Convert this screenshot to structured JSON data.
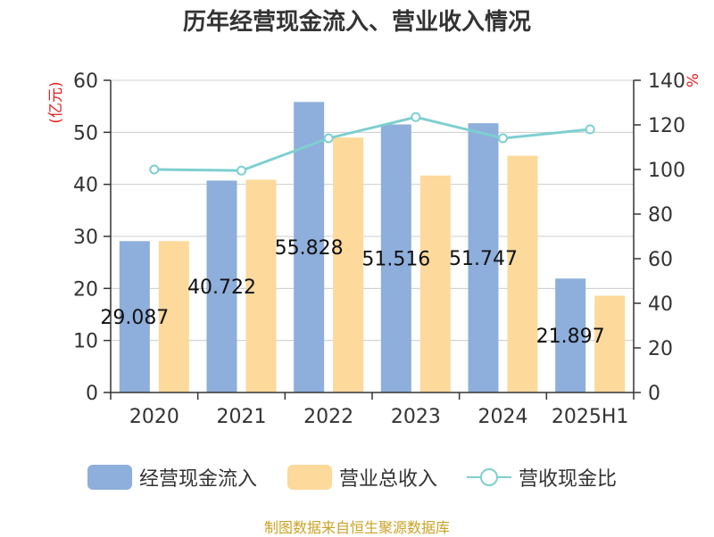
{
  "chart_data": {
    "type": "bar",
    "title": "历年经营现金流入、营业收入情况",
    "categories": [
      "2020",
      "2021",
      "2022",
      "2023",
      "2024",
      "2025H1"
    ],
    "y_left": {
      "label": "(亿元)",
      "range": [
        0,
        60
      ],
      "ticks": [
        0,
        10,
        20,
        30,
        40,
        50,
        60
      ]
    },
    "y_right": {
      "label": "%",
      "range": [
        0,
        140
      ],
      "ticks": [
        0,
        20,
        40,
        60,
        80,
        100,
        120,
        140
      ]
    },
    "grid": true,
    "legend_position": "bottom",
    "series": [
      {
        "name": "经营现金流入",
        "type": "bar",
        "axis": "left",
        "color": "#8eaedb",
        "values": [
          29.087,
          40.722,
          55.828,
          51.516,
          51.747,
          21.897
        ],
        "data_labels": [
          "29.087",
          "40.722",
          "55.828",
          "51.516",
          "51.747",
          "21.897"
        ]
      },
      {
        "name": "营业总收入",
        "type": "bar",
        "axis": "left",
        "color": "#fdd99b",
        "values": [
          29.1,
          40.9,
          49.0,
          41.7,
          45.5,
          18.6
        ]
      },
      {
        "name": "营收现金比",
        "type": "line",
        "axis": "right",
        "color": "#7ecfd0",
        "values": [
          100,
          99.5,
          114,
          123.5,
          114,
          118
        ]
      }
    ]
  },
  "legend": [
    {
      "label": "经营现金流入",
      "kind": "bar",
      "color": "#8eaedb"
    },
    {
      "label": "营业总收入",
      "kind": "bar",
      "color": "#fdd99b"
    },
    {
      "label": "营收现金比",
      "kind": "line",
      "color": "#7ecfd0"
    }
  ],
  "source": "制图数据来自恒生聚源数据库"
}
